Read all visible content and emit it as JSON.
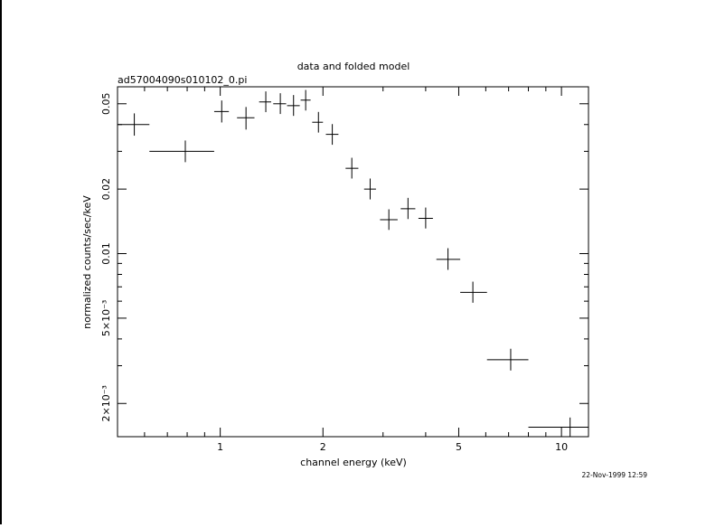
{
  "chart_data": {
    "type": "scatter",
    "title": "data and folded model",
    "subtitle": "ad57004090s010102_0.pi",
    "xlabel": "channel energy (keV)",
    "ylabel": "normalized counts/sec/keV",
    "timestamp": "22-Nov-1999 12:59",
    "x_scale": "log",
    "y_scale": "log",
    "xlim": [
      0.5,
      12
    ],
    "ylim": [
      0.0014,
      0.06
    ],
    "x_ticks": [
      {
        "value": 1,
        "label": "1"
      },
      {
        "value": 2,
        "label": "2"
      },
      {
        "value": 5,
        "label": "5"
      },
      {
        "value": 10,
        "label": "10"
      }
    ],
    "y_ticks": [
      {
        "value": 0.05,
        "label": "0.05"
      },
      {
        "value": 0.02,
        "label": "0.02"
      },
      {
        "value": 0.01,
        "label": "0.01"
      },
      {
        "value": 0.005,
        "label": "5×10⁻³"
      },
      {
        "value": 0.002,
        "label": "2×10⁻³"
      }
    ],
    "grid": false,
    "colors": {
      "foreground": "#000000",
      "background": "#ffffff"
    },
    "series": [
      {
        "points": [
          {
            "x": 0.56,
            "xerr": [
              0.5,
              0.62
            ],
            "y": 0.04,
            "yerr": [
              0.0355,
              0.0451
            ]
          },
          {
            "x": 0.79,
            "xerr": [
              0.62,
              0.96
            ],
            "y": 0.03,
            "yerr": [
              0.0267,
              0.0337
            ]
          },
          {
            "x": 1.01,
            "xerr": [
              0.96,
              1.06
            ],
            "y": 0.046,
            "yerr": [
              0.0409,
              0.0518
            ]
          },
          {
            "x": 1.19,
            "xerr": [
              1.12,
              1.26
            ],
            "y": 0.043,
            "yerr": [
              0.0379,
              0.0483
            ]
          },
          {
            "x": 1.36,
            "xerr": [
              1.3,
              1.41
            ],
            "y": 0.051,
            "yerr": [
              0.0457,
              0.0571
            ]
          },
          {
            "x": 1.5,
            "xerr": [
              1.43,
              1.56
            ],
            "y": 0.05,
            "yerr": [
              0.0448,
              0.056
            ]
          },
          {
            "x": 1.64,
            "xerr": [
              1.57,
              1.71
            ],
            "y": 0.049,
            "yerr": [
              0.0439,
              0.0549
            ]
          },
          {
            "x": 1.78,
            "xerr": [
              1.72,
              1.84
            ],
            "y": 0.052,
            "yerr": [
              0.0465,
              0.058
            ]
          },
          {
            "x": 1.94,
            "xerr": [
              1.86,
              2.0
            ],
            "y": 0.041,
            "yerr": [
              0.0367,
              0.0458
            ]
          },
          {
            "x": 2.13,
            "xerr": [
              2.04,
              2.22
            ],
            "y": 0.036,
            "yerr": [
              0.0322,
              0.0402
            ]
          },
          {
            "x": 2.43,
            "xerr": [
              2.33,
              2.54
            ],
            "y": 0.025,
            "yerr": [
              0.0224,
              0.028
            ]
          },
          {
            "x": 2.75,
            "xerr": [
              2.64,
              2.86
            ],
            "y": 0.02,
            "yerr": [
              0.0179,
              0.0224
            ]
          },
          {
            "x": 3.12,
            "xerr": [
              2.94,
              3.31
            ],
            "y": 0.0144,
            "yerr": [
              0.0129,
              0.0161
            ]
          },
          {
            "x": 3.55,
            "xerr": [
              3.38,
              3.73
            ],
            "y": 0.0162,
            "yerr": [
              0.0145,
              0.0182
            ]
          },
          {
            "x": 4.0,
            "xerr": [
              3.81,
              4.2
            ],
            "y": 0.0146,
            "yerr": [
              0.0131,
              0.0164
            ]
          },
          {
            "x": 4.65,
            "xerr": [
              4.3,
              5.05
            ],
            "y": 0.0094,
            "yerr": [
              0.0084,
              0.0106
            ]
          },
          {
            "x": 5.5,
            "xerr": [
              5.05,
              6.05
            ],
            "y": 0.0066,
            "yerr": [
              0.0059,
              0.0074
            ]
          },
          {
            "x": 7.1,
            "xerr": [
              6.05,
              8.0
            ],
            "y": 0.0032,
            "yerr": [
              0.00285,
              0.0036
            ]
          },
          {
            "x": 10.6,
            "xerr": [
              8.0,
              12.0
            ],
            "y": 0.00155,
            "yerr": [
              0.0014,
              0.00172
            ]
          }
        ]
      }
    ]
  }
}
